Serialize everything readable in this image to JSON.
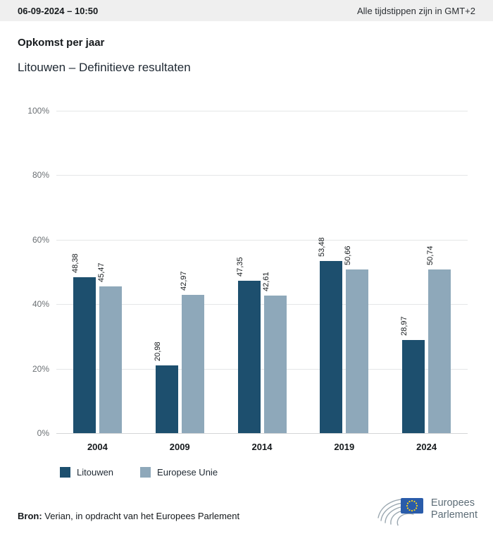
{
  "header": {
    "datetime": "06-09-2024 – 10:50",
    "timezone_note": "Alle tijdstippen zijn in GMT+2"
  },
  "title": "Opkomst per jaar",
  "subtitle": "Litouwen – Definitieve resultaten",
  "chart_data": {
    "type": "bar",
    "categories": [
      "2004",
      "2009",
      "2014",
      "2019",
      "2024"
    ],
    "series": [
      {
        "name": "Litouwen",
        "color": "#1d4f6e",
        "values": [
          48.38,
          20.98,
          47.35,
          53.48,
          28.97
        ],
        "labels": [
          "48,38",
          "20,98",
          "47,35",
          "53,48",
          "28,97"
        ]
      },
      {
        "name": "Europese Unie",
        "color": "#8ea8ba",
        "values": [
          45.47,
          42.97,
          42.61,
          50.66,
          50.74
        ],
        "labels": [
          "45,47",
          "42,97",
          "42,61",
          "50,66",
          "50,74"
        ]
      }
    ],
    "ylim": [
      0,
      100
    ],
    "yticks": [
      0,
      20,
      40,
      60,
      80,
      100
    ],
    "ytick_labels": [
      "0%",
      "20%",
      "40%",
      "60%",
      "80%",
      "100%"
    ],
    "grid": true,
    "legend_position": "bottom",
    "value_label_rotation": 90
  },
  "footer": {
    "source_label": "Bron:",
    "source_text": " Verian, in opdracht van het Europees Parlement"
  },
  "logo": {
    "line1": "Europees",
    "line2": "Parlement",
    "flag_color": "#2a5caa",
    "star_color": "#ffd617",
    "swirl_color": "#9aa7b0"
  }
}
